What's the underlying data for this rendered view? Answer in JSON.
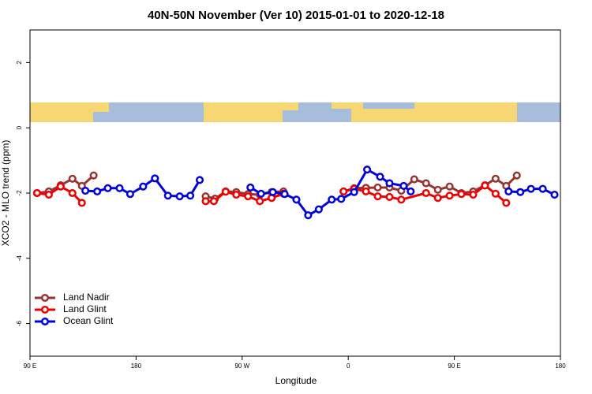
{
  "chart_data": {
    "type": "line",
    "title": "40N-50N November (Ver 10)   2015-01-01 to 2020-12-18",
    "x_label": "Longitude",
    "y_label": "XCO2 - MLO trend (ppm)",
    "xlim": [
      90,
      540
    ],
    "xticks": [
      {
        "value": 90,
        "label": "90 E"
      },
      {
        "value": 180,
        "label": "180"
      },
      {
        "value": 270,
        "label": "90 W"
      },
      {
        "value": 360,
        "label": "0"
      },
      {
        "value": 450,
        "label": "90 E"
      },
      {
        "value": 540,
        "label": "180"
      }
    ],
    "ylim": [
      -7,
      3
    ],
    "yticks": [
      -6,
      -4,
      -2,
      0,
      2
    ],
    "legend": "bottom-left",
    "series": [
      {
        "name": "Land Nadir",
        "color": "#993333",
        "x": [
          96,
          106,
          116,
          126,
          134,
          144,
          null,
          239,
          247,
          256,
          265,
          275,
          285,
          295,
          305,
          null,
          356,
          365,
          375,
          385,
          395,
          405,
          416,
          426,
          436,
          446,
          456,
          466,
          476,
          485,
          494,
          503
        ],
        "values": [
          -2.0,
          -1.95,
          -1.76,
          -1.56,
          -1.78,
          -1.46,
          null,
          -2.1,
          -2.17,
          -1.95,
          -1.97,
          -2.03,
          -2.05,
          -1.97,
          -1.95,
          null,
          -1.95,
          -1.85,
          -1.84,
          -1.83,
          -1.83,
          -1.93,
          -1.58,
          -1.7,
          -1.9,
          -1.8,
          -2.0,
          -1.95,
          -1.76,
          -1.56,
          -1.78,
          -1.46
        ]
      },
      {
        "name": "Land Glint",
        "color": "#ee0000",
        "x": [
          96,
          106,
          116,
          126,
          134,
          null,
          239,
          246,
          256,
          265,
          275,
          285,
          295,
          305,
          null,
          356,
          365,
          375,
          385,
          395,
          405,
          426,
          436,
          446,
          456,
          466,
          476,
          485,
          494
        ],
        "values": [
          -2.0,
          -2.05,
          -1.8,
          -2.0,
          -2.3,
          null,
          -2.25,
          -2.25,
          -1.96,
          -2.05,
          -2.1,
          -2.25,
          -2.15,
          -2.02,
          null,
          -1.95,
          -1.87,
          -1.95,
          -2.1,
          -2.12,
          -2.2,
          -2.0,
          -2.15,
          -2.08,
          -2.03,
          -2.05,
          -1.77,
          -2.02,
          -2.3
        ]
      },
      {
        "name": "Ocean Glint",
        "color": "#0000dd",
        "x": [
          137,
          147,
          156,
          166,
          175,
          186,
          196,
          207,
          217,
          226,
          234,
          null,
          277,
          286,
          296,
          306,
          316,
          326,
          335,
          346,
          354,
          365,
          376,
          387,
          395,
          407,
          413,
          null,
          496,
          506,
          515,
          525,
          535
        ],
        "values": [
          -1.93,
          -1.95,
          -1.85,
          -1.85,
          -2.03,
          -1.8,
          -1.55,
          -2.08,
          -2.1,
          -2.08,
          -1.6,
          null,
          -1.83,
          -2.02,
          -1.97,
          -2.03,
          -2.2,
          -2.68,
          -2.5,
          -2.2,
          -2.18,
          -1.97,
          -1.28,
          -1.5,
          -1.7,
          -1.78,
          -1.95,
          null,
          -1.95,
          -1.97,
          -1.87,
          -1.87,
          -2.05
        ]
      }
    ]
  }
}
